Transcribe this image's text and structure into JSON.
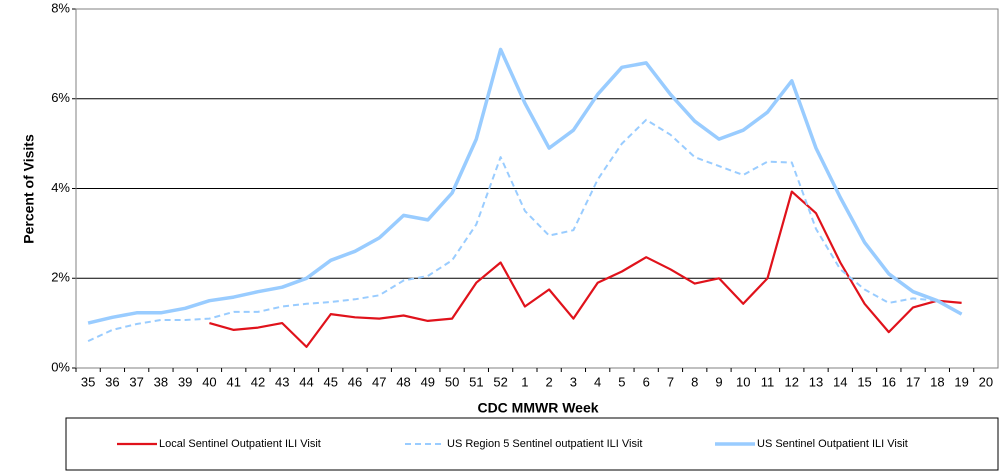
{
  "chart_data": {
    "type": "line",
    "x_label": "CDC MMWR Week",
    "y_label": "Percent of Visits",
    "categories": [
      "35",
      "36",
      "37",
      "38",
      "39",
      "40",
      "41",
      "42",
      "43",
      "44",
      "45",
      "46",
      "47",
      "48",
      "49",
      "50",
      "51",
      "52",
      "1",
      "2",
      "3",
      "4",
      "5",
      "6",
      "7",
      "8",
      "9",
      "10",
      "11",
      "12",
      "13",
      "14",
      "15",
      "16",
      "17",
      "18",
      "19",
      "20"
    ],
    "ylim": [
      0,
      8
    ],
    "yticks": [
      {
        "value": 0,
        "label": "0%"
      },
      {
        "value": 2,
        "label": "2%"
      },
      {
        "value": 4,
        "label": "4%"
      },
      {
        "value": 6,
        "label": "6%"
      },
      {
        "value": 8,
        "label": "8%"
      }
    ],
    "grid": true,
    "series": [
      {
        "name": "Local Sentinel Outpatient ILI Visit",
        "color": "#e0121b",
        "style": "solid",
        "values": [
          null,
          null,
          null,
          null,
          null,
          1.0,
          0.85,
          0.9,
          1.0,
          0.47,
          1.2,
          1.13,
          1.1,
          1.17,
          1.05,
          1.1,
          1.9,
          2.35,
          1.37,
          1.75,
          1.1,
          1.9,
          2.15,
          2.47,
          2.2,
          1.88,
          2.0,
          1.43,
          2.0,
          3.93,
          3.45,
          2.35,
          1.43,
          0.8,
          1.35,
          1.5,
          1.45,
          null
        ]
      },
      {
        "name": "US Region 5 Sentinel outpatient ILI Visit",
        "color": "#99ccff",
        "style": "dashed",
        "values": [
          0.6,
          0.85,
          0.98,
          1.07,
          1.07,
          1.1,
          1.25,
          1.25,
          1.37,
          1.43,
          1.47,
          1.53,
          1.62,
          1.95,
          2.05,
          2.4,
          3.2,
          4.7,
          3.5,
          2.95,
          3.07,
          4.2,
          5.0,
          5.53,
          5.2,
          4.7,
          4.5,
          4.3,
          4.6,
          4.58,
          3.1,
          2.2,
          1.75,
          1.45,
          1.55,
          1.5,
          1.2,
          null
        ]
      },
      {
        "name": "US Sentinel Outpatient ILI Visit",
        "color": "#99ccff",
        "style": "thick",
        "values": [
          1.0,
          1.13,
          1.23,
          1.23,
          1.33,
          1.5,
          1.58,
          1.7,
          1.8,
          2.0,
          2.4,
          2.6,
          2.9,
          3.4,
          3.3,
          3.9,
          5.1,
          7.1,
          5.9,
          4.9,
          5.3,
          6.1,
          6.7,
          6.8,
          6.1,
          5.5,
          5.1,
          5.3,
          5.7,
          6.4,
          4.9,
          3.8,
          2.8,
          2.1,
          1.7,
          1.5,
          1.2,
          null
        ]
      }
    ]
  }
}
